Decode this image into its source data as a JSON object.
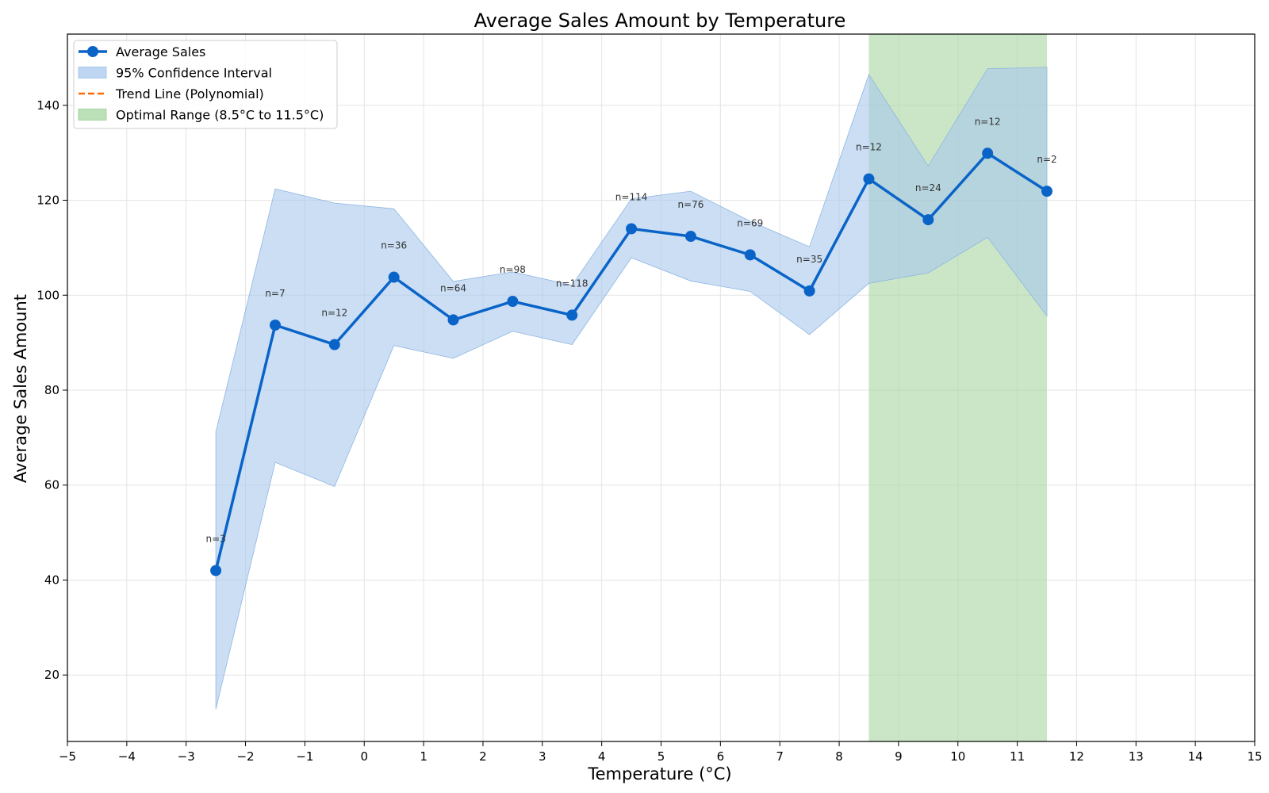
{
  "chart_data": {
    "type": "line",
    "title": "Average Sales Amount by Temperature",
    "xlabel": "Temperature (°C)",
    "ylabel": "Average Sales Amount",
    "xlim": [
      -5,
      15
    ],
    "ylim": [
      6,
      155
    ],
    "xticks": [
      -5,
      -4,
      -3,
      -2,
      -1,
      0,
      1,
      2,
      3,
      4,
      5,
      6,
      7,
      8,
      9,
      10,
      11,
      12,
      13,
      14,
      15
    ],
    "yticks": [
      20,
      40,
      60,
      80,
      100,
      120,
      140
    ],
    "grid": true,
    "legend_position": "top-left",
    "legend": [
      {
        "label": "Average Sales",
        "kind": "line-marker",
        "color": "#0a64c8"
      },
      {
        "label": "95% Confidence Interval",
        "kind": "patch",
        "color": "#a8c8ec"
      },
      {
        "label": "Trend Line (Polynomial)",
        "kind": "dashed",
        "color": "#ff6a00"
      },
      {
        "label": "Optimal Range (8.5°C to 11.5°C)",
        "kind": "patch",
        "color": "#a6d5a0"
      }
    ],
    "series": [
      {
        "name": "Average Sales",
        "color": "#0a64c8",
        "x": [
          -2.5,
          -1.5,
          -0.5,
          0.5,
          1.5,
          2.5,
          3.5,
          4.5,
          5.5,
          6.5,
          7.5,
          8.5,
          9.5,
          10.5,
          11.5
        ],
        "y": [
          42,
          93.7,
          89.6,
          103.8,
          94.8,
          98.7,
          95.8,
          114.0,
          112.4,
          108.5,
          100.9,
          124.5,
          115.9,
          129.9,
          121.9
        ],
        "n": [
          "n=3",
          "n=7",
          "n=12",
          "n=36",
          "n=64",
          "n=98",
          "n=118",
          "n=114",
          "n=76",
          "n=69",
          "n=35",
          "n=12",
          "n=24",
          "n=12",
          "n=2"
        ]
      }
    ],
    "confidence_interval": {
      "name": "95% Confidence Interval",
      "color": "#a8c8ec",
      "lower": [
        12.8,
        64.8,
        59.7,
        89.4,
        86.7,
        92.4,
        89.6,
        107.9,
        103.0,
        100.8,
        91.7,
        102.5,
        104.7,
        112.2,
        95.6
      ],
      "upper": [
        71.2,
        122.4,
        119.4,
        118.2,
        102.9,
        104.9,
        102.1,
        120.3,
        121.9,
        115.6,
        110.2,
        146.5,
        127.2,
        147.7,
        148.0
      ]
    },
    "optimal_range": {
      "name": "Optimal Range (8.5°C to 11.5°C)",
      "color": "#a6d5a0",
      "x": [
        8.5,
        11.5
      ]
    }
  }
}
